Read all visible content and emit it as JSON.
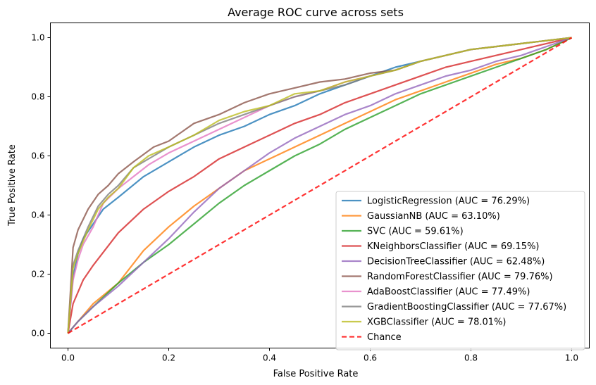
{
  "chart_data": {
    "type": "line",
    "title": "Average ROC curve across sets",
    "xlabel": "False Positive Rate",
    "ylabel": "True Positive Rate",
    "xlim": [
      -0.035,
      1.035
    ],
    "ylim": [
      -0.05,
      1.05
    ],
    "xticks": [
      "0.0",
      "0.2",
      "0.4",
      "0.6",
      "0.8",
      "1.0"
    ],
    "yticks": [
      "0.0",
      "0.2",
      "0.4",
      "0.6",
      "0.8",
      "1.0"
    ],
    "grid": false,
    "legend_position": "lower right",
    "series": [
      {
        "name": "LogisticRegression (AUC = 76.29%)",
        "color": "#1f77b4",
        "points": [
          [
            0,
            0
          ],
          [
            0.01,
            0.19
          ],
          [
            0.02,
            0.27
          ],
          [
            0.03,
            0.32
          ],
          [
            0.05,
            0.37
          ],
          [
            0.07,
            0.42
          ],
          [
            0.1,
            0.46
          ],
          [
            0.15,
            0.53
          ],
          [
            0.2,
            0.58
          ],
          [
            0.25,
            0.63
          ],
          [
            0.3,
            0.67
          ],
          [
            0.35,
            0.7
          ],
          [
            0.4,
            0.74
          ],
          [
            0.45,
            0.77
          ],
          [
            0.5,
            0.81
          ],
          [
            0.55,
            0.84
          ],
          [
            0.6,
            0.87
          ],
          [
            0.65,
            0.9
          ],
          [
            0.7,
            0.92
          ],
          [
            0.75,
            0.94
          ],
          [
            0.8,
            0.96
          ],
          [
            0.85,
            0.97
          ],
          [
            0.9,
            0.98
          ],
          [
            0.95,
            0.99
          ],
          [
            1,
            1
          ]
        ]
      },
      {
        "name": "GaussianNB (AUC = 63.10%)",
        "color": "#ff7f0e",
        "points": [
          [
            0,
            0
          ],
          [
            0.02,
            0.04
          ],
          [
            0.05,
            0.1
          ],
          [
            0.1,
            0.17
          ],
          [
            0.15,
            0.28
          ],
          [
            0.2,
            0.36
          ],
          [
            0.25,
            0.43
          ],
          [
            0.3,
            0.49
          ],
          [
            0.35,
            0.55
          ],
          [
            0.4,
            0.59
          ],
          [
            0.45,
            0.63
          ],
          [
            0.5,
            0.67
          ],
          [
            0.55,
            0.71
          ],
          [
            0.6,
            0.75
          ],
          [
            0.65,
            0.79
          ],
          [
            0.7,
            0.82
          ],
          [
            0.75,
            0.85
          ],
          [
            0.8,
            0.88
          ],
          [
            0.85,
            0.91
          ],
          [
            0.9,
            0.93
          ],
          [
            0.95,
            0.96
          ],
          [
            1,
            1
          ]
        ]
      },
      {
        "name": "SVC (AUC = 59.61%)",
        "color": "#2ca02c",
        "points": [
          [
            0,
            0
          ],
          [
            0.02,
            0.04
          ],
          [
            0.05,
            0.09
          ],
          [
            0.1,
            0.17
          ],
          [
            0.15,
            0.24
          ],
          [
            0.2,
            0.3
          ],
          [
            0.25,
            0.37
          ],
          [
            0.3,
            0.44
          ],
          [
            0.35,
            0.5
          ],
          [
            0.4,
            0.55
          ],
          [
            0.45,
            0.6
          ],
          [
            0.5,
            0.64
          ],
          [
            0.55,
            0.69
          ],
          [
            0.6,
            0.73
          ],
          [
            0.65,
            0.77
          ],
          [
            0.7,
            0.81
          ],
          [
            0.75,
            0.84
          ],
          [
            0.8,
            0.87
          ],
          [
            0.85,
            0.9
          ],
          [
            0.9,
            0.93
          ],
          [
            0.95,
            0.96
          ],
          [
            1,
            1
          ]
        ]
      },
      {
        "name": "KNeighborsClassifier (AUC = 69.15%)",
        "color": "#d62728",
        "points": [
          [
            0,
            0
          ],
          [
            0.01,
            0.1
          ],
          [
            0.03,
            0.18
          ],
          [
            0.05,
            0.23
          ],
          [
            0.1,
            0.34
          ],
          [
            0.15,
            0.42
          ],
          [
            0.2,
            0.48
          ],
          [
            0.25,
            0.53
          ],
          [
            0.3,
            0.59
          ],
          [
            0.35,
            0.63
          ],
          [
            0.4,
            0.67
          ],
          [
            0.45,
            0.71
          ],
          [
            0.5,
            0.74
          ],
          [
            0.55,
            0.78
          ],
          [
            0.6,
            0.81
          ],
          [
            0.65,
            0.84
          ],
          [
            0.7,
            0.87
          ],
          [
            0.75,
            0.9
          ],
          [
            0.8,
            0.92
          ],
          [
            0.85,
            0.94
          ],
          [
            0.9,
            0.96
          ],
          [
            0.95,
            0.98
          ],
          [
            1,
            1
          ]
        ]
      },
      {
        "name": "DecisionTreeClassifier (AUC = 62.48%)",
        "color": "#9467bd",
        "points": [
          [
            0,
            0
          ],
          [
            0.02,
            0.04
          ],
          [
            0.05,
            0.09
          ],
          [
            0.1,
            0.16
          ],
          [
            0.15,
            0.24
          ],
          [
            0.2,
            0.32
          ],
          [
            0.25,
            0.41
          ],
          [
            0.3,
            0.49
          ],
          [
            0.35,
            0.55
          ],
          [
            0.4,
            0.61
          ],
          [
            0.45,
            0.66
          ],
          [
            0.5,
            0.7
          ],
          [
            0.55,
            0.74
          ],
          [
            0.6,
            0.77
          ],
          [
            0.65,
            0.81
          ],
          [
            0.7,
            0.84
          ],
          [
            0.75,
            0.87
          ],
          [
            0.8,
            0.89
          ],
          [
            0.85,
            0.92
          ],
          [
            0.9,
            0.94
          ],
          [
            0.95,
            0.97
          ],
          [
            1,
            1
          ]
        ]
      },
      {
        "name": "RandomForestClassifier (AUC = 79.76%)",
        "color": "#8c564b",
        "points": [
          [
            0,
            0
          ],
          [
            0.01,
            0.29
          ],
          [
            0.02,
            0.35
          ],
          [
            0.04,
            0.42
          ],
          [
            0.06,
            0.47
          ],
          [
            0.08,
            0.5
          ],
          [
            0.1,
            0.54
          ],
          [
            0.13,
            0.58
          ],
          [
            0.17,
            0.63
          ],
          [
            0.2,
            0.65
          ],
          [
            0.25,
            0.71
          ],
          [
            0.3,
            0.74
          ],
          [
            0.35,
            0.78
          ],
          [
            0.4,
            0.81
          ],
          [
            0.45,
            0.83
          ],
          [
            0.5,
            0.85
          ],
          [
            0.55,
            0.86
          ],
          [
            0.6,
            0.88
          ],
          [
            0.65,
            0.89
          ],
          [
            0.7,
            0.92
          ],
          [
            0.75,
            0.94
          ],
          [
            0.8,
            0.96
          ],
          [
            0.85,
            0.97
          ],
          [
            0.9,
            0.98
          ],
          [
            0.95,
            0.99
          ],
          [
            1,
            1
          ]
        ]
      },
      {
        "name": "AdaBoostClassifier (AUC = 77.49%)",
        "color": "#e377c2",
        "points": [
          [
            0,
            0
          ],
          [
            0.01,
            0.18
          ],
          [
            0.02,
            0.25
          ],
          [
            0.03,
            0.3
          ],
          [
            0.05,
            0.36
          ],
          [
            0.07,
            0.44
          ],
          [
            0.1,
            0.49
          ],
          [
            0.13,
            0.53
          ],
          [
            0.16,
            0.57
          ],
          [
            0.2,
            0.61
          ],
          [
            0.25,
            0.65
          ],
          [
            0.3,
            0.69
          ],
          [
            0.35,
            0.73
          ],
          [
            0.4,
            0.77
          ],
          [
            0.45,
            0.8
          ],
          [
            0.5,
            0.82
          ],
          [
            0.55,
            0.85
          ],
          [
            0.6,
            0.87
          ],
          [
            0.65,
            0.89
          ],
          [
            0.7,
            0.92
          ],
          [
            0.75,
            0.94
          ],
          [
            0.8,
            0.96
          ],
          [
            0.85,
            0.97
          ],
          [
            0.9,
            0.98
          ],
          [
            0.95,
            0.99
          ],
          [
            1,
            1
          ]
        ]
      },
      {
        "name": "GradientBoostingClassifier (AUC = 77.67%)",
        "color": "#7f7f7f",
        "points": [
          [
            0,
            0
          ],
          [
            0.01,
            0.23
          ],
          [
            0.02,
            0.28
          ],
          [
            0.04,
            0.36
          ],
          [
            0.06,
            0.43
          ],
          [
            0.08,
            0.47
          ],
          [
            0.1,
            0.5
          ],
          [
            0.13,
            0.56
          ],
          [
            0.16,
            0.59
          ],
          [
            0.2,
            0.63
          ],
          [
            0.25,
            0.67
          ],
          [
            0.3,
            0.71
          ],
          [
            0.35,
            0.74
          ],
          [
            0.4,
            0.77
          ],
          [
            0.45,
            0.8
          ],
          [
            0.5,
            0.82
          ],
          [
            0.55,
            0.84
          ],
          [
            0.6,
            0.87
          ],
          [
            0.65,
            0.89
          ],
          [
            0.7,
            0.92
          ],
          [
            0.75,
            0.94
          ],
          [
            0.8,
            0.96
          ],
          [
            0.85,
            0.97
          ],
          [
            0.9,
            0.98
          ],
          [
            0.95,
            0.99
          ],
          [
            1,
            1
          ]
        ]
      },
      {
        "name": "XGBClassifier (AUC = 78.01%)",
        "color": "#bcbd22",
        "points": [
          [
            0,
            0
          ],
          [
            0.01,
            0.22
          ],
          [
            0.02,
            0.27
          ],
          [
            0.04,
            0.35
          ],
          [
            0.06,
            0.42
          ],
          [
            0.08,
            0.46
          ],
          [
            0.1,
            0.49
          ],
          [
            0.13,
            0.56
          ],
          [
            0.16,
            0.6
          ],
          [
            0.2,
            0.63
          ],
          [
            0.25,
            0.67
          ],
          [
            0.3,
            0.72
          ],
          [
            0.35,
            0.75
          ],
          [
            0.4,
            0.77
          ],
          [
            0.45,
            0.81
          ],
          [
            0.5,
            0.82
          ],
          [
            0.55,
            0.85
          ],
          [
            0.6,
            0.87
          ],
          [
            0.65,
            0.89
          ],
          [
            0.7,
            0.92
          ],
          [
            0.75,
            0.94
          ],
          [
            0.8,
            0.96
          ],
          [
            0.85,
            0.97
          ],
          [
            0.9,
            0.98
          ],
          [
            0.95,
            0.99
          ],
          [
            1,
            1
          ]
        ]
      },
      {
        "name": "Chance",
        "color": "#ff0000",
        "dashed": true,
        "points": [
          [
            0,
            0
          ],
          [
            1,
            1
          ]
        ]
      }
    ]
  }
}
